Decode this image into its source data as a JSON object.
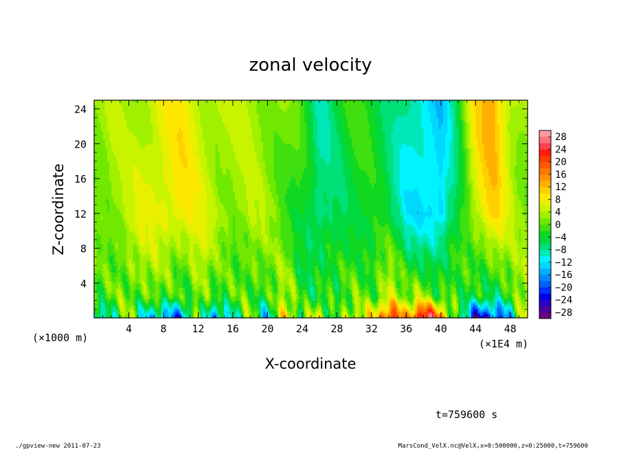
{
  "chart_data": {
    "type": "heatmap",
    "title": "zonal velocity",
    "xlabel": "X-coordinate",
    "ylabel": "Z-coordinate",
    "x_unit_note": "(×1E4 m)",
    "y_unit_note": "(×1000 m)",
    "xlim": [
      0,
      50
    ],
    "ylim": [
      0,
      25
    ],
    "x_ticks": [
      4,
      8,
      12,
      16,
      20,
      24,
      28,
      32,
      36,
      40,
      44,
      48
    ],
    "y_ticks": [
      4,
      8,
      12,
      16,
      20,
      24
    ],
    "colorbar": {
      "levels": [
        -30,
        -28,
        -26,
        -24,
        -22,
        -20,
        -18,
        -16,
        -14,
        -12,
        -10,
        -8,
        -6,
        -4,
        -2,
        0,
        2,
        4,
        6,
        8,
        10,
        12,
        14,
        16,
        18,
        20,
        22,
        24,
        26,
        28,
        30
      ],
      "tick_labels": [
        28,
        24,
        20,
        16,
        12,
        8,
        4,
        0,
        -4,
        -8,
        -12,
        -16,
        -20,
        -24,
        -28
      ],
      "colors": [
        "#6a0080",
        "#4a00a0",
        "#2a00c8",
        "#0000e8",
        "#0030ff",
        "#0060ff",
        "#0088ff",
        "#00b0ff",
        "#00d8ff",
        "#00f4ff",
        "#00e8b8",
        "#00e078",
        "#00d840",
        "#10d820",
        "#40e010",
        "#70e800",
        "#a0f000",
        "#c8f400",
        "#e8f000",
        "#ffe800",
        "#ffd000",
        "#ffb000",
        "#ff9400",
        "#ff7800",
        "#ff5a00",
        "#ff3a00",
        "#ff1a10",
        "#ff4050",
        "#ff7080",
        "#ff98a0"
      ]
    },
    "columns": {
      "x": [
        0.5,
        2,
        4,
        6,
        8,
        10,
        12,
        14,
        16,
        18,
        20,
        22,
        24,
        26,
        28,
        30,
        32,
        34,
        36,
        38,
        40,
        42,
        44,
        46,
        48,
        49.5
      ],
      "upper": [
        2,
        3,
        3,
        5,
        7,
        8,
        6,
        4,
        3,
        4,
        3,
        1,
        -2,
        -8,
        -4,
        -2,
        -3,
        -5,
        -9,
        -12,
        -13,
        -4,
        9,
        14,
        6,
        3
      ],
      "mid": [
        2,
        3,
        4,
        6,
        8,
        9,
        6,
        4,
        3,
        3,
        2,
        0,
        -3,
        -9,
        -6,
        -3,
        -4,
        -6,
        -10,
        -12,
        -14,
        -4,
        6,
        10,
        4,
        2
      ],
      "surface": [
        -14,
        -8,
        4,
        -10,
        -18,
        -20,
        5,
        -18,
        -10,
        3,
        -12,
        8,
        -4,
        10,
        -6,
        4,
        8,
        26,
        10,
        28,
        20,
        -6,
        -26,
        -22,
        -12,
        4
      ]
    },
    "timestamp": "t=759600 s",
    "footer_left": "./gpview-new   2011-07-23",
    "footer_right": "MarsCond_VelX.nc@VelX,x=0:500000,z=0:25000,t=759600"
  }
}
